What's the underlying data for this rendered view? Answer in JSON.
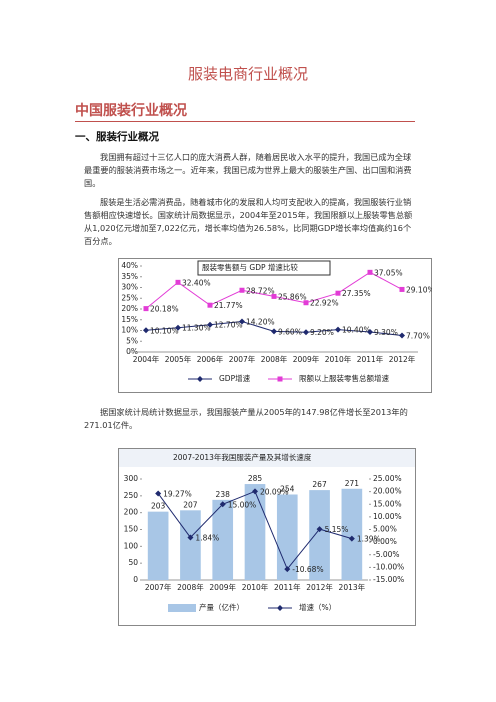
{
  "document": {
    "title": "服装电商行业概况",
    "heading": "中国服装行业概况",
    "subheading": "一、服装行业概况",
    "paragraphs": [
      "我国拥有超过十三亿人口的庞大消费人群，随着居民收入水平的提升，我国已成为全球最重要的服装消费市场之一。近年来，我国已成为世界上最大的服装生产国、出口国和消费国。",
      "服装是生活必需消费品，随着城市化的发展和人均可支配收入的提高，我国服装行业销售额相应快速增长。国家统计局数据显示，2004年至2015年，我国限额以上服装零售总额从1,020亿元增加至7,022亿元，增长率均值为26.58%，比同期GDP增长率均值高约16个百分点。",
      "据国家统计局统计数据显示，我国服装产量从2005年的147.98亿件增长至2013年的271.01亿件。"
    ]
  },
  "chart_data": [
    {
      "type": "line",
      "title": "服装零售额与 GDP 增速比较",
      "categories": [
        "2004年",
        "2005年",
        "2006年",
        "2007年",
        "2008年",
        "2009年",
        "2010年",
        "2011年",
        "2012年"
      ],
      "series": [
        {
          "name": "GDP增速",
          "color": "#1f2a6e",
          "marker": "diamond",
          "values": [
            10.1,
            11.3,
            12.7,
            14.2,
            9.6,
            9.2,
            10.4,
            9.3,
            7.7
          ],
          "value_labels": [
            "10.10%",
            "11.30%",
            "12.70%",
            "14.20%",
            "9.60%",
            "9.20%",
            "10.40%",
            "9.30%",
            "7.70%"
          ]
        },
        {
          "name": "限额以上服装零售总额增速",
          "color": "#e23cd6",
          "marker": "square",
          "values": [
            20.18,
            32.4,
            21.77,
            28.72,
            25.86,
            22.92,
            27.35,
            37.05,
            29.1
          ],
          "value_labels": [
            "20.18%",
            "32.40%",
            "21.77%",
            "28.72%",
            "25.86%",
            "22.92%",
            "27.35%",
            "37.05%",
            "29.10%"
          ]
        }
      ],
      "ylim": [
        0,
        40
      ],
      "yticks": [
        {
          "value": 0,
          "label": "0%"
        },
        {
          "value": 5,
          "label": "5%"
        },
        {
          "value": 10,
          "label": "10%"
        },
        {
          "value": 15,
          "label": "15%"
        },
        {
          "value": 20,
          "label": "20%"
        },
        {
          "value": 25,
          "label": "25%"
        },
        {
          "value": 30,
          "label": "30%"
        },
        {
          "value": 35,
          "label": "35%"
        },
        {
          "value": 40,
          "label": "40%"
        }
      ]
    },
    {
      "type": "bar",
      "title": "2007-2013年我国服装产量及其增长速度",
      "categories": [
        "2007年",
        "2008年",
        "2009年",
        "2010年",
        "2011年",
        "2012年",
        "2013年"
      ],
      "series": [
        {
          "name": "产量（亿件）",
          "color": "#a8c6e6",
          "values": [
            203,
            207,
            238,
            285,
            254,
            267,
            271
          ]
        },
        {
          "name": "增速（%）",
          "type": "line",
          "axis": "y2",
          "color": "#1f2a6e",
          "marker": "diamond",
          "values": [
            19.27,
            1.84,
            15,
            20.09,
            -10.68,
            5.15,
            1.39
          ],
          "value_labels": [
            "19.27%",
            "1.84%",
            "15.00%",
            "20.09%",
            "-10.68%",
            "5.15%",
            "1.39%"
          ]
        }
      ],
      "ylim": [
        0,
        300
      ],
      "yticks": [
        0,
        50,
        100,
        150,
        200,
        250,
        300
      ],
      "y2lim": [
        -15,
        25
      ],
      "y2ticks": [
        {
          "value": -15,
          "label": "-15.00%"
        },
        {
          "value": -10,
          "label": "-10.00%"
        },
        {
          "value": -5,
          "label": "-5.00%"
        },
        {
          "value": 0,
          "label": "0.00%"
        },
        {
          "value": 5,
          "label": "5.00%"
        },
        {
          "value": 10,
          "label": "10.00%"
        },
        {
          "value": 15,
          "label": "15.00%"
        },
        {
          "value": 20,
          "label": "20.00%"
        },
        {
          "value": 25,
          "label": "25.00%"
        }
      ]
    }
  ]
}
